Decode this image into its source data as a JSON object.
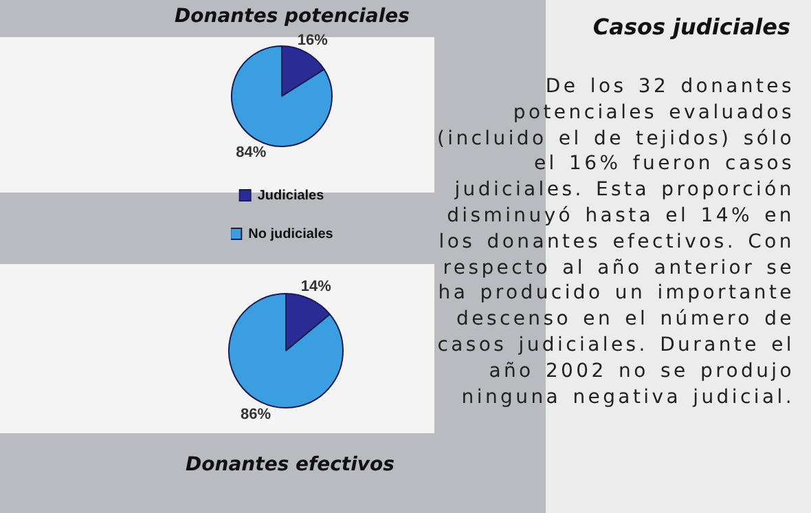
{
  "chart_data": [
    {
      "type": "pie",
      "title": "Donantes potenciales",
      "categories": [
        "Judiciales",
        "No judiciales"
      ],
      "values": [
        16,
        84
      ],
      "colors": [
        "#2b2b96",
        "#3a9ee0"
      ],
      "value_labels": [
        "16%",
        "84%"
      ],
      "legend": "bottom"
    },
    {
      "type": "pie",
      "title": "Donantes efectivos",
      "categories": [
        null,
        null
      ],
      "values": [
        14,
        86
      ],
      "colors": [
        "#2b2b96",
        "#3a9ee0"
      ],
      "value_labels": [
        "14%",
        "86%"
      ]
    },
    {
      "type": "other",
      "title": "Casos judiciales",
      "annotations": [
        "De los 32 donantes potenciales evaluados (incluido el de tejidos) sólo el 16% fueron casos judiciales. Esta proporción disminuyó hasta el 14% en los donantes efectivos. Con respecto al año anterior se ha producido un importante descenso en el número de casos judiciales. Durante el año 2002 no se produjo ninguna negativa judicial."
      ]
    }
  ]
}
